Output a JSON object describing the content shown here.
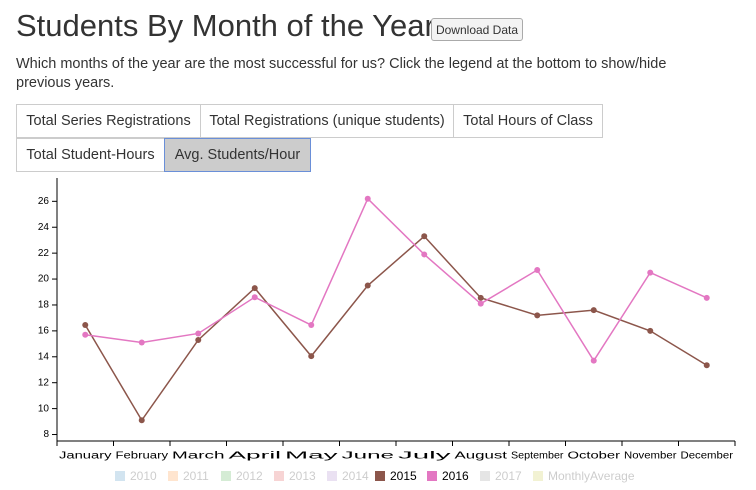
{
  "header": {
    "title": "Students By Month of the Year",
    "download_button": "Download Data",
    "description": "Which months of the year are the most successful for us? Click the legend at the bottom to show/hide previous years."
  },
  "tabs": [
    {
      "label": "Total Series Registrations",
      "active": false
    },
    {
      "label": "Total Registrations (unique students)",
      "active": false
    },
    {
      "label": "Total Hours of Class",
      "active": false
    },
    {
      "label": "Total Student-Hours",
      "active": false
    },
    {
      "label": "Avg. Students/Hour",
      "active": true
    }
  ],
  "chart_data": {
    "type": "line",
    "categories": [
      "January",
      "February",
      "March",
      "April",
      "May",
      "June",
      "July",
      "August",
      "September",
      "October",
      "November",
      "December"
    ],
    "ylim": [
      7.5,
      27.8
    ],
    "yticks": [
      8,
      10,
      12,
      14,
      16,
      18,
      20,
      22,
      24,
      26
    ],
    "series": [
      {
        "name": "2010",
        "color": "#1f77b4",
        "hidden": true
      },
      {
        "name": "2011",
        "color": "#ff7f0e",
        "hidden": true
      },
      {
        "name": "2012",
        "color": "#2ca02c",
        "hidden": true
      },
      {
        "name": "2013",
        "color": "#d62728",
        "hidden": true
      },
      {
        "name": "2014",
        "color": "#9467bd",
        "hidden": true
      },
      {
        "name": "2015",
        "color": "#8c564b",
        "hidden": false,
        "values": [
          16.45,
          9.1,
          15.3,
          19.3,
          14.05,
          19.5,
          23.3,
          18.55,
          17.2,
          17.6,
          16.0,
          13.35
        ]
      },
      {
        "name": "2016",
        "color": "#e377c2",
        "hidden": false,
        "values": [
          15.7,
          15.1,
          15.8,
          18.6,
          16.45,
          26.2,
          21.9,
          18.1,
          20.7,
          13.7,
          20.5,
          18.55
        ]
      },
      {
        "name": "2017",
        "color": "#7f7f7f",
        "hidden": true
      },
      {
        "name": "MonthlyAverage",
        "color": "#bcbd22",
        "hidden": true
      }
    ]
  }
}
